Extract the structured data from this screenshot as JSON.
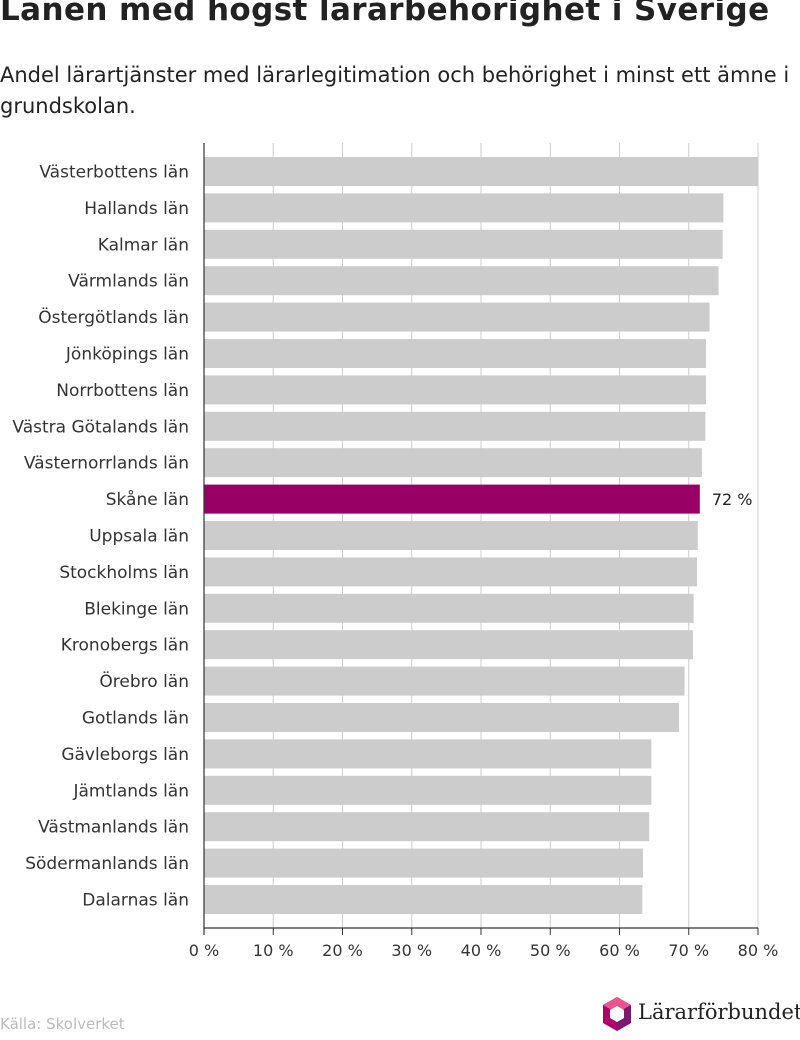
{
  "title": "Länen med högst lärarbehörighet i Sverige",
  "subtitle": "Andel lärartjänster med lärarlegitimation och behörighet i minst ett ämne i grundskolan.",
  "source": "Källa: Skolverket",
  "logo_text": "Lärarförbundet",
  "colors": {
    "bar": "#cccccc",
    "highlight": "#990066",
    "grid": "#cccccc",
    "axis": "#333333"
  },
  "chart_data": {
    "type": "bar",
    "orientation": "horizontal",
    "categories": [
      "Västerbottens län",
      "Hallands län",
      "Kalmar län",
      "Värmlands län",
      "Östergötlands län",
      "Jönköpings län",
      "Norrbottens län",
      "Västra Götalands län",
      "Västernorrlands län",
      "Skåne län",
      "Uppsala län",
      "Stockholms län",
      "Blekinge län",
      "Kronobergs län",
      "Örebro län",
      "Gotlands län",
      "Gävleborgs län",
      "Jämtlands län",
      "Västmanlands län",
      "Södermanlands län",
      "Dalarnas län"
    ],
    "values": [
      80.0,
      75.0,
      74.9,
      74.3,
      73.0,
      72.5,
      72.5,
      72.4,
      71.9,
      71.6,
      71.3,
      71.2,
      70.7,
      70.6,
      69.4,
      68.6,
      64.6,
      64.6,
      64.3,
      63.4,
      63.3
    ],
    "highlight": "Skåne län",
    "data_labels": [
      {
        "category": "Skåne län",
        "text": "72 %"
      }
    ],
    "xlim": [
      0,
      80
    ],
    "xticks": [
      0,
      10,
      20,
      30,
      40,
      50,
      60,
      70,
      80
    ],
    "tick_labels": [
      "0 %",
      "10 %",
      "20 %",
      "30 %",
      "40 %",
      "50 %",
      "60 %",
      "70 %",
      "80 %"
    ],
    "grid": true,
    "xlabel": "",
    "ylabel": ""
  }
}
